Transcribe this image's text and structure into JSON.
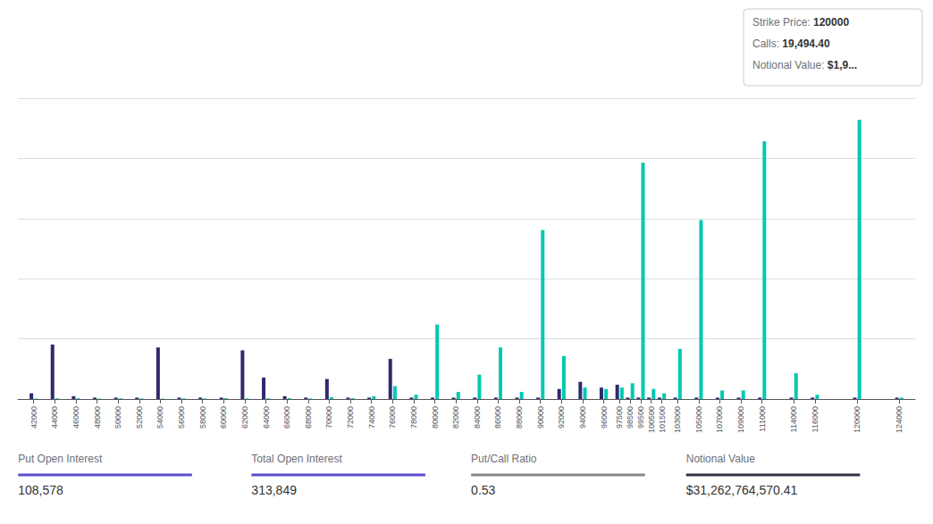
{
  "chart_data": {
    "type": "bar",
    "x": [
      42000,
      44000,
      46000,
      48000,
      50000,
      52000,
      54000,
      56000,
      58000,
      60000,
      62000,
      64000,
      66000,
      68000,
      70000,
      72000,
      74000,
      76000,
      78000,
      80000,
      82000,
      84000,
      86000,
      88000,
      90000,
      92000,
      94000,
      96000,
      97500,
      98500,
      99500,
      100500,
      101500,
      103000,
      105000,
      107000,
      109000,
      111000,
      114000,
      116000,
      120000,
      124000
    ],
    "series": [
      {
        "color": "#2e2a6e",
        "values": [
          400,
          3800,
          200,
          100,
          100,
          100,
          3600,
          100,
          100,
          100,
          3400,
          1500,
          200,
          100,
          1400,
          100,
          100,
          2800,
          100,
          100,
          100,
          100,
          100,
          100,
          100,
          700,
          1200,
          800,
          1000,
          100,
          100,
          100,
          100,
          100,
          100,
          100,
          100,
          100,
          100,
          100,
          100,
          100
        ]
      },
      {
        "color": "#00c9b1",
        "values": [
          30,
          50,
          60,
          30,
          50,
          40,
          30,
          40,
          40,
          60,
          40,
          50,
          60,
          40,
          120,
          60,
          200,
          900,
          300,
          5200,
          500,
          1700,
          3600,
          500,
          11800,
          3000,
          800,
          700,
          800,
          1100,
          16500,
          700,
          400,
          3500,
          12500,
          600,
          600,
          18000,
          1800,
          300,
          19494,
          100
        ]
      }
    ],
    "xlim": [
      40500,
      125500
    ],
    "xticks": [
      42000,
      44000,
      46000,
      48000,
      50000,
      52000,
      54000,
      56000,
      58000,
      60000,
      62000,
      64000,
      66000,
      68000,
      70000,
      72000,
      74000,
      76000,
      78000,
      80000,
      82000,
      84000,
      86000,
      88000,
      90000,
      92000,
      94000,
      96000,
      97500,
      98500,
      99500,
      100500,
      101500,
      103000,
      105000,
      107000,
      109000,
      111000,
      114000,
      116000,
      120000,
      124000
    ],
    "ylim": [
      0,
      21000
    ],
    "yticks": [
      0,
      4200,
      8400,
      12600,
      16800,
      21000
    ],
    "grid": true,
    "tick_labels": "x",
    "annotations": [
      {
        "label": "Strike Price:",
        "value": "120000"
      },
      {
        "label": "Calls:",
        "value": "19,494.40"
      },
      {
        "label": "Notional Value:",
        "value": "$1,9..."
      }
    ],
    "footer": [
      {
        "label": "Put Open Interest",
        "value": "108,578",
        "color": "#5b4fcf"
      },
      {
        "label": "Total Open Interest",
        "value": "313,849",
        "color": "#5b4fcf"
      },
      {
        "label": "Put/Call Ratio",
        "value": "0.53",
        "color": "#888888"
      },
      {
        "label": "Notional Value",
        "value": "$31,262,764,570.41",
        "color": "#333344"
      }
    ]
  }
}
